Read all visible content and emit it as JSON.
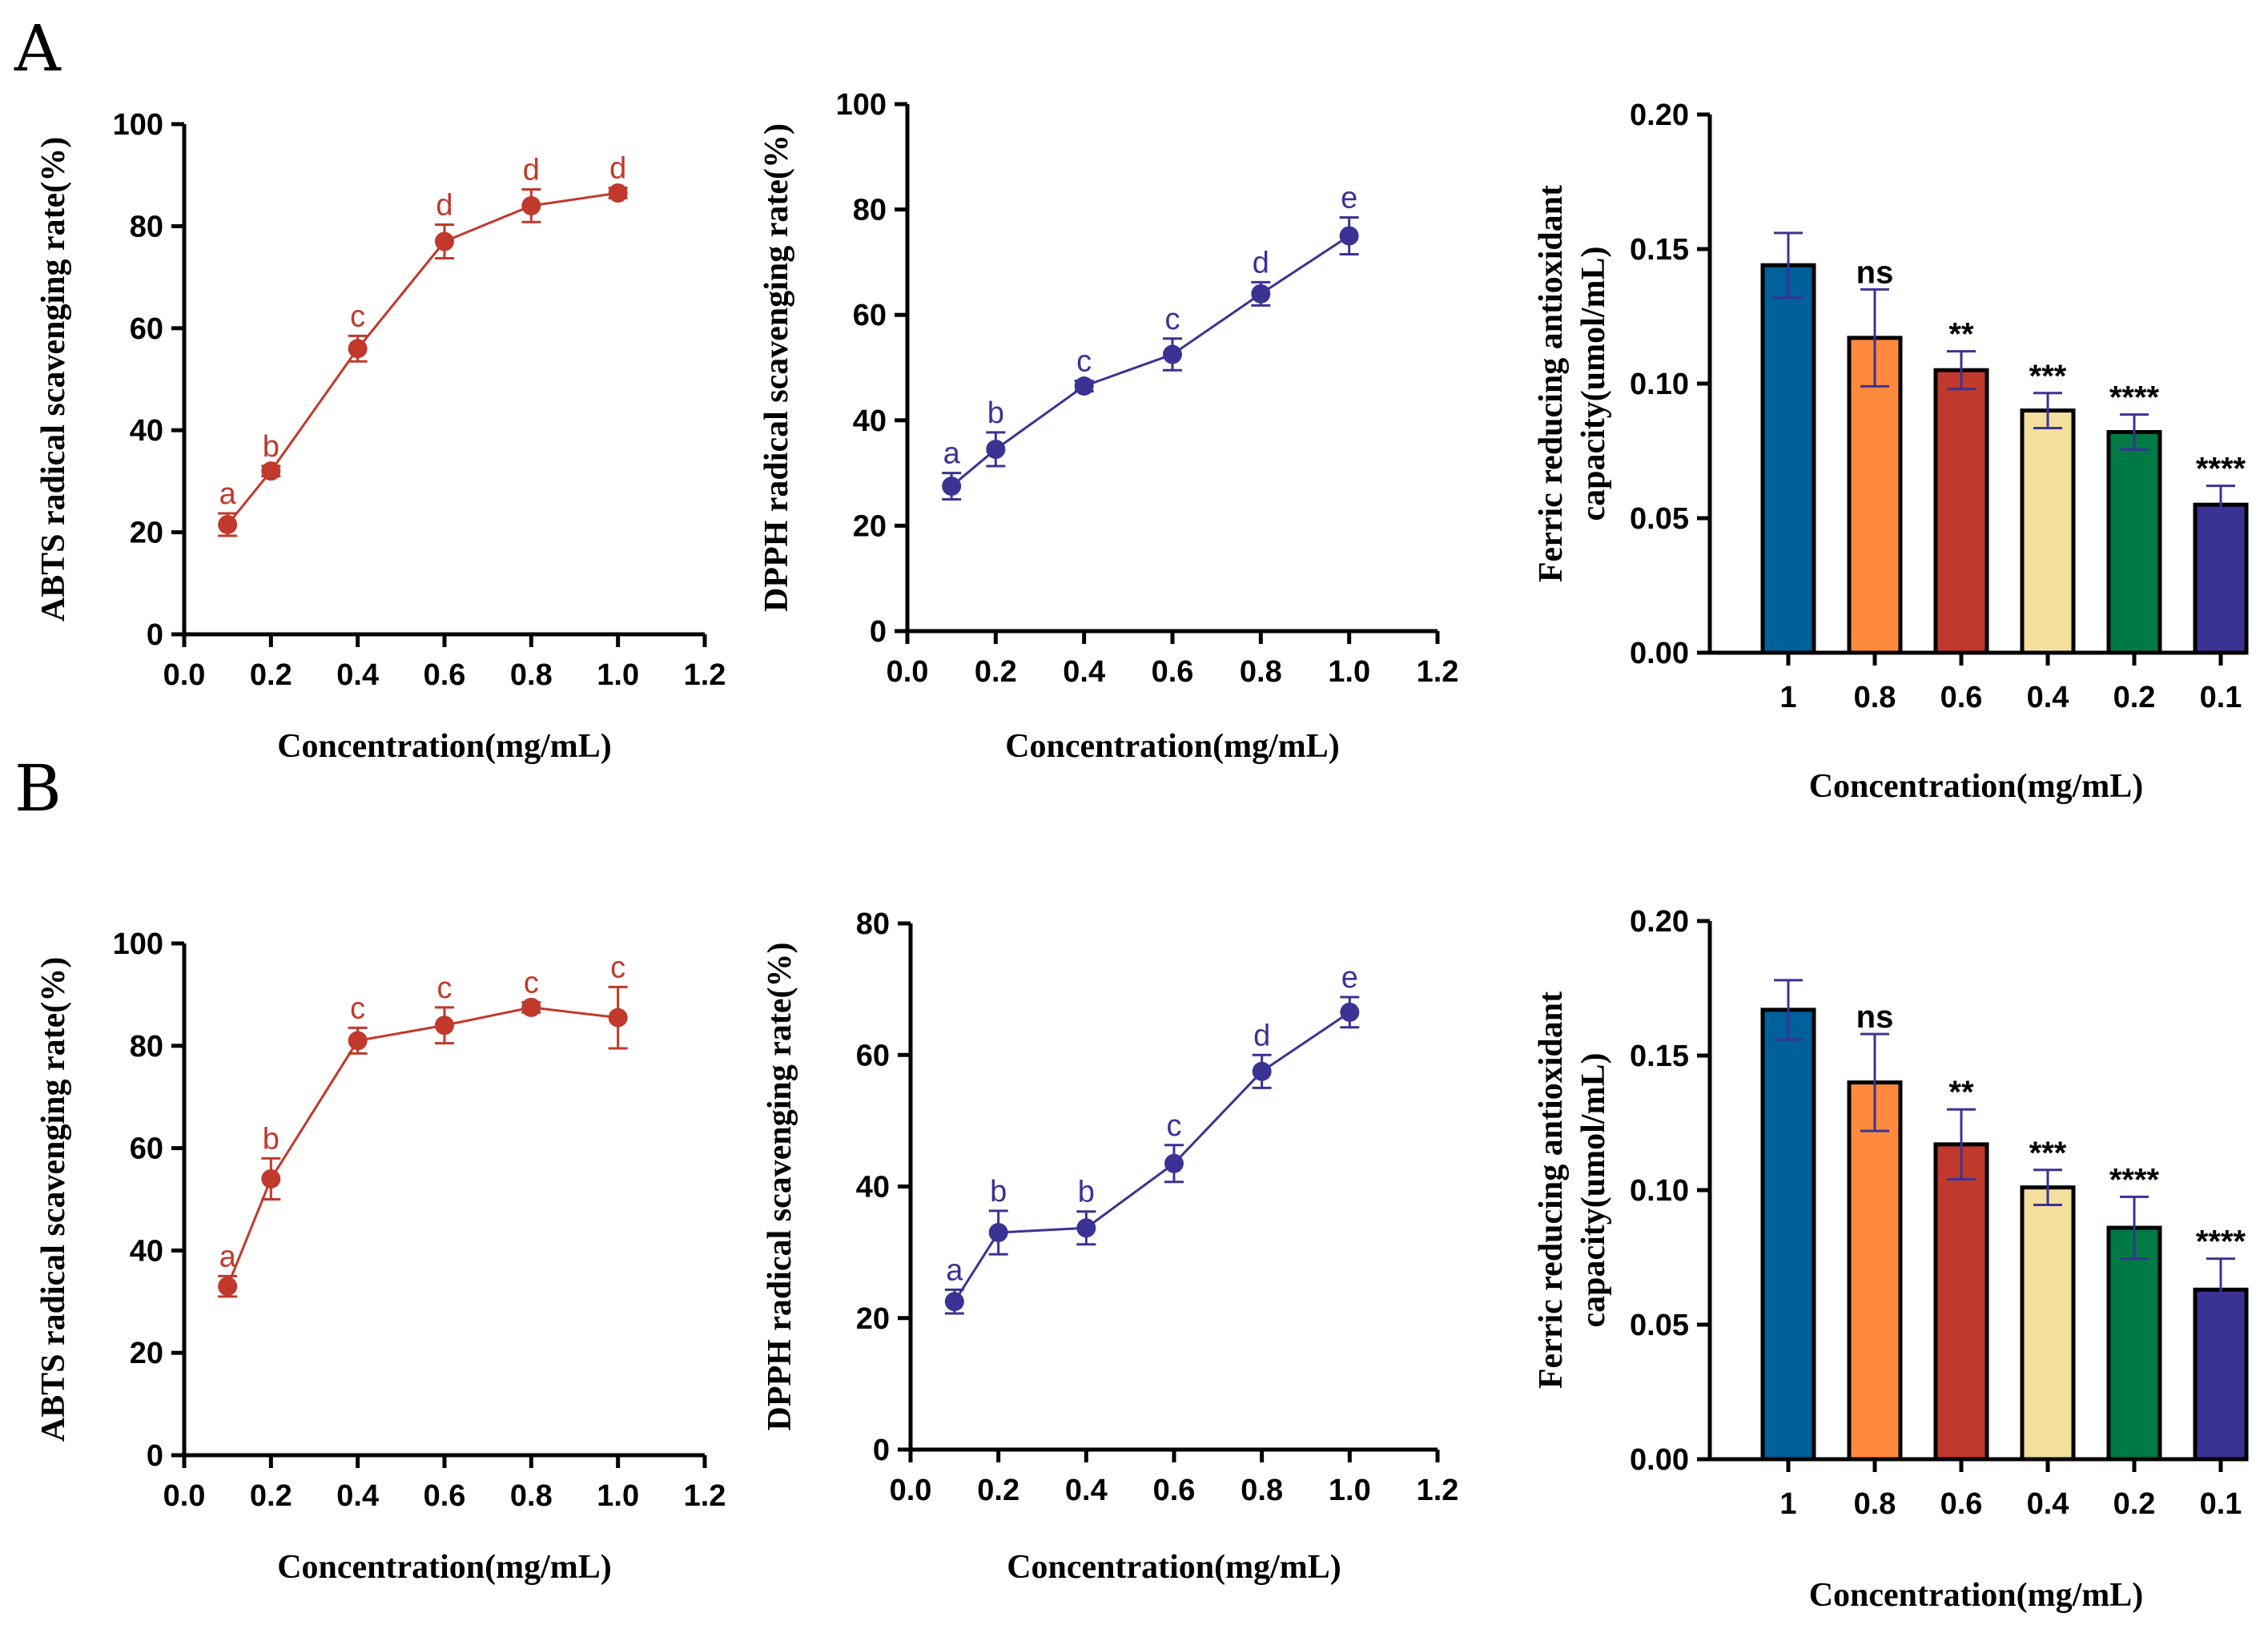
{
  "panel_labels": [
    "A",
    "B"
  ],
  "colors": {
    "abts": "#c0392b",
    "dpph": "#3a3394",
    "bars": [
      "#00609a",
      "#ff8a3d",
      "#c0392b",
      "#f4df9f",
      "#007a45",
      "#3a3394"
    ],
    "errorbar_bar": "#3a3394"
  },
  "chart_data": [
    {
      "id": "A-abts",
      "type": "line",
      "row": "A",
      "col": 0,
      "xlabel": "Concentration(mg/mL)",
      "ylabel": "ABTS radical scavenging rate(%)",
      "xlim": [
        0,
        1.2
      ],
      "ylim": [
        0,
        100
      ],
      "xticks": [
        "0.0",
        "0.2",
        "0.4",
        "0.6",
        "0.8",
        "1.0",
        "1.2"
      ],
      "yticks": [
        "0",
        "20",
        "40",
        "60",
        "80",
        "100"
      ],
      "x": [
        0.1,
        0.2,
        0.4,
        0.6,
        0.8,
        1.0
      ],
      "y": [
        21.5,
        32,
        56,
        77,
        84,
        86.5
      ],
      "err": [
        2.2,
        1,
        2.5,
        3.3,
        3.2,
        1
      ],
      "labels": [
        "a",
        "b",
        "c",
        "d",
        "d",
        "d"
      ],
      "color": "#c0392b"
    },
    {
      "id": "A-dpph",
      "type": "line",
      "row": "A",
      "col": 1,
      "xlabel": "Concentration(mg/mL)",
      "ylabel": "DPPH radical scavenging rate(%)",
      "xlim": [
        0,
        1.2
      ],
      "ylim": [
        0,
        100
      ],
      "xticks": [
        "0.0",
        "0.2",
        "0.4",
        "0.6",
        "0.8",
        "1.0",
        "1.2"
      ],
      "yticks": [
        "0",
        "20",
        "40",
        "60",
        "80",
        "100"
      ],
      "x": [
        0.1,
        0.2,
        0.4,
        0.6,
        0.8,
        1.0
      ],
      "y": [
        27.5,
        34.5,
        46.5,
        52.5,
        64,
        75
      ],
      "err": [
        2.5,
        3.2,
        1,
        3,
        2.2,
        3.5
      ],
      "labels": [
        "a",
        "b",
        "c",
        "c",
        "d",
        "e"
      ],
      "color": "#3a3394"
    },
    {
      "id": "A-frap",
      "type": "bar",
      "row": "A",
      "col": 2,
      "xlabel": "Concentration(mg/mL)",
      "ylabel": [
        "Ferric reducing antioxidant",
        "capacity(umol/mL)"
      ],
      "ylim": [
        0,
        0.2
      ],
      "yticks": [
        "0.00",
        "0.05",
        "0.10",
        "0.15",
        "0.20"
      ],
      "categories": [
        "1",
        "0.8",
        "0.6",
        "0.4",
        "0.2",
        "0.1"
      ],
      "values": [
        0.144,
        0.117,
        0.105,
        0.09,
        0.082,
        0.055
      ],
      "err": [
        0.012,
        0.018,
        0.007,
        0.0065,
        0.0065,
        0.007
      ],
      "labels": [
        "",
        "ns",
        "**",
        "***",
        "****",
        "****"
      ]
    },
    {
      "id": "B-abts",
      "type": "line",
      "row": "B",
      "col": 0,
      "xlabel": "Concentration(mg/mL)",
      "ylabel": "ABTS radical scavenging rate(%)",
      "xlim": [
        0,
        1.2
      ],
      "ylim": [
        0,
        100
      ],
      "xticks": [
        "0.0",
        "0.2",
        "0.4",
        "0.6",
        "0.8",
        "1.0",
        "1.2"
      ],
      "yticks": [
        "0",
        "20",
        "40",
        "60",
        "80",
        "100"
      ],
      "x": [
        0.1,
        0.2,
        0.4,
        0.6,
        0.8,
        1.0
      ],
      "y": [
        33,
        54,
        81,
        84,
        87.5,
        85.5
      ],
      "err": [
        2,
        4,
        2.5,
        3.5,
        1,
        6
      ],
      "labels": [
        "a",
        "b",
        "c",
        "c",
        "c",
        "c"
      ],
      "color": "#c0392b"
    },
    {
      "id": "B-dpph",
      "type": "line",
      "row": "B",
      "col": 1,
      "xlabel": "Concentration(mg/mL)",
      "ylabel": "DPPH radical scavenging rate(%)",
      "xlim": [
        0,
        1.2
      ],
      "ylim": [
        0,
        80
      ],
      "xticks": [
        "0.0",
        "0.2",
        "0.4",
        "0.6",
        "0.8",
        "1.0",
        "1.2"
      ],
      "yticks": [
        "0",
        "20",
        "40",
        "60",
        "80"
      ],
      "x": [
        0.1,
        0.2,
        0.4,
        0.6,
        0.8,
        1.0
      ],
      "y": [
        22.5,
        33,
        33.7,
        43.5,
        57.5,
        66.5
      ],
      "err": [
        1.8,
        3.3,
        2.5,
        2.8,
        2.5,
        2.3
      ],
      "labels": [
        "a",
        "b",
        "b",
        "c",
        "d",
        "e"
      ],
      "color": "#3a3394"
    },
    {
      "id": "B-frap",
      "type": "bar",
      "row": "B",
      "col": 2,
      "xlabel": "Concentration(mg/mL)",
      "ylabel": [
        "Ferric reducing antioxidant",
        "capacity(umol/mL)"
      ],
      "ylim": [
        0,
        0.2
      ],
      "yticks": [
        "0.00",
        "0.05",
        "0.10",
        "0.15",
        "0.20"
      ],
      "categories": [
        "1",
        "0.8",
        "0.6",
        "0.4",
        "0.2",
        "0.1"
      ],
      "values": [
        0.167,
        0.14,
        0.117,
        0.101,
        0.086,
        0.063
      ],
      "err": [
        0.011,
        0.018,
        0.013,
        0.0065,
        0.0115,
        0.0115
      ],
      "labels": [
        "",
        "ns",
        "**",
        "***",
        "****",
        "****"
      ]
    }
  ]
}
